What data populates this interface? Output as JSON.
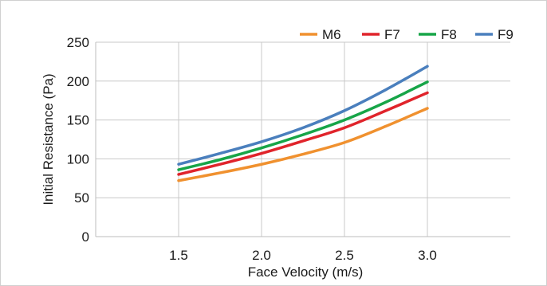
{
  "chart_data": {
    "type": "line",
    "title": "",
    "xlabel": "Face Velocity (m/s)",
    "ylabel": "Initial Resistance (Pa)",
    "xlim": [
      1.0,
      3.5
    ],
    "ylim": [
      0,
      250
    ],
    "x_ticks": [
      "1.5",
      "2.0",
      "2.5",
      "3.0"
    ],
    "y_ticks": [
      "0",
      "50",
      "100",
      "150",
      "200",
      "250"
    ],
    "grid": true,
    "legend_position": "top-right",
    "x": [
      1.5,
      1.75,
      2.0,
      2.25,
      2.5,
      2.75,
      3.0
    ],
    "series": [
      {
        "name": "M6",
        "color": "#f0912f",
        "values": [
          72,
          82,
          93,
          106,
          121,
          142,
          165
        ]
      },
      {
        "name": "F7",
        "color": "#e0242b",
        "values": [
          80,
          93,
          107,
          123,
          140,
          162,
          185
        ]
      },
      {
        "name": "F8",
        "color": "#17a548",
        "values": [
          86,
          99,
          114,
          131,
          150,
          173,
          199
        ]
      },
      {
        "name": "F9",
        "color": "#4a7fbd",
        "values": [
          93,
          107,
          122,
          140,
          162,
          189,
          219
        ]
      }
    ]
  }
}
